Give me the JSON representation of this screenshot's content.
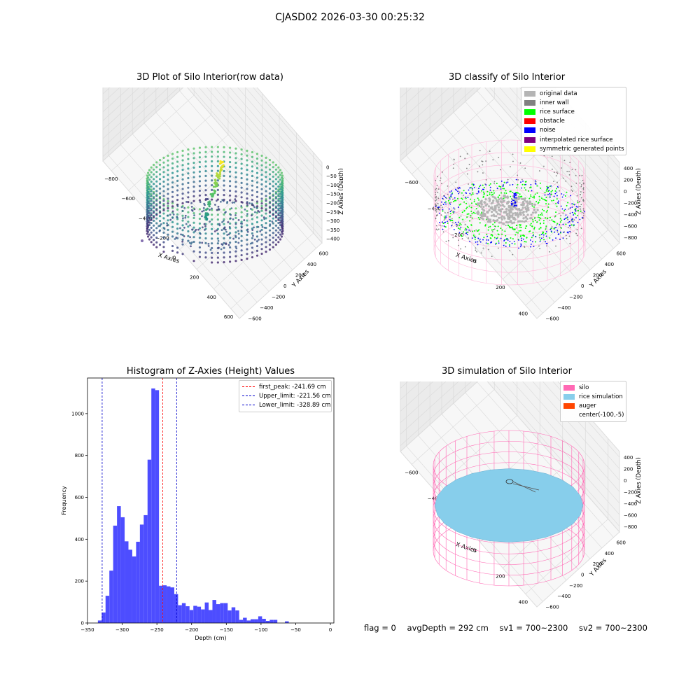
{
  "suptitle": "CJASD02 2026-03-30 00:25:32",
  "panels": {
    "raw": {
      "title": "3D Plot of Silo Interior(row data)",
      "xlabel": "X Axies",
      "ylabel": "Y Axies",
      "zlabel": "Z Axies (Depth)",
      "xticks": [
        "−800",
        "−600",
        "−400",
        "−200",
        "0",
        "200",
        "400",
        "600"
      ],
      "yticks": [
        "−600",
        "−400",
        "−200",
        "0",
        "200",
        "400",
        "600"
      ],
      "zticks": [
        "0",
        "−50",
        "−100",
        "−150",
        "−200",
        "−250",
        "−300",
        "−350",
        "−400"
      ],
      "colormap": "viridis"
    },
    "classify": {
      "title": "3D classify of Silo Interior",
      "xlabel": "X Axies",
      "ylabel": "Y Axies",
      "zlabel": "Z Axies (Depth)",
      "xticks": [
        "−600",
        "−400",
        "−200",
        "0",
        "200",
        "400"
      ],
      "yticks": [
        "−600",
        "−400",
        "−200",
        "0",
        "200",
        "400",
        "600"
      ],
      "zticks": [
        "400",
        "200",
        "0",
        "−200",
        "−400",
        "−600",
        "−800"
      ],
      "legend": [
        {
          "label": "original data",
          "color": "#b4b4b4"
        },
        {
          "label": "inner wall",
          "color": "#808080"
        },
        {
          "label": "rice surface",
          "color": "#00ff00"
        },
        {
          "label": "obstacle",
          "color": "#ff0000"
        },
        {
          "label": "noise",
          "color": "#0000ff"
        },
        {
          "label": "interpolated rice surface",
          "color": "#800080"
        },
        {
          "label": "symmetric generated points",
          "color": "#ffff00"
        }
      ]
    },
    "simulation": {
      "title": "3D simulation of Silo Interior",
      "xlabel": "X Axies",
      "ylabel": "Y Axies",
      "zlabel": "Z Axies (Depth)",
      "xticks": [
        "−600",
        "−400",
        "−200",
        "0",
        "200",
        "400"
      ],
      "yticks": [
        "−600",
        "−400",
        "−200",
        "0",
        "200",
        "400",
        "600"
      ],
      "zticks": [
        "400",
        "200",
        "0",
        "−200",
        "−400",
        "−600",
        "−800"
      ],
      "legend": [
        {
          "label": "silo",
          "color": "#ff69b4"
        },
        {
          "label": "rice simulation",
          "color": "#87ceeb"
        },
        {
          "label": "auger",
          "color": "#ff4500"
        },
        {
          "label": "center(-100,-5)",
          "color": ""
        }
      ]
    }
  },
  "chart_data": [
    {
      "type": "bar",
      "title": "Histogram of Z-Axies (Height) Values",
      "xlabel": "Depth (cm)",
      "ylabel": "Frequency",
      "xlim": [
        -350,
        5
      ],
      "ylim": [
        0,
        1170
      ],
      "xticks": [
        -350,
        -300,
        -250,
        -200,
        -150,
        -100,
        -50,
        0
      ],
      "yticks": [
        0,
        200,
        400,
        600,
        800,
        1000
      ],
      "bin_start": -335,
      "bin_width": 5.5,
      "values": [
        12,
        50,
        130,
        250,
        465,
        558,
        505,
        390,
        350,
        318,
        388,
        470,
        515,
        780,
        1120,
        1112,
        178,
        180,
        175,
        170,
        138,
        85,
        95,
        80,
        62,
        82,
        78,
        65,
        98,
        62,
        110,
        90,
        95,
        95,
        60,
        75,
        60,
        15,
        25,
        12,
        18,
        18,
        32,
        20,
        10,
        15,
        15,
        0,
        0,
        8
      ],
      "bar_color": "#4d4dff",
      "vlines": [
        {
          "label": "first_peak: -241.69 cm",
          "x": -241.69,
          "color": "#ff0000"
        },
        {
          "label": "Upper_limit: -221.56 cm",
          "x": -221.56,
          "color": "#0000cc"
        },
        {
          "label": "Lower_limit: -328.89 cm",
          "x": -328.89,
          "color": "#0000cc"
        }
      ],
      "legend_position": "upper right",
      "grid": false
    }
  ],
  "status": {
    "flag": "flag = 0",
    "avg": "avgDepth = 292 cm",
    "sv1": "sv1 = 700~2300",
    "sv2": "sv2 = 700~2300"
  }
}
